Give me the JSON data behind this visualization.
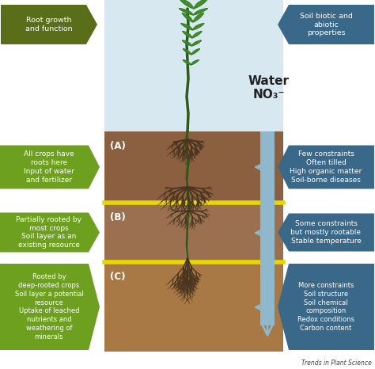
{
  "bg_color": "#ffffff",
  "sky_color": "#d8e8f0",
  "soil_a_color": "#8B6040",
  "soil_b_color": "#9B7050",
  "soil_c_color": "#A87845",
  "yellow_line_color": "#E8D800",
  "arrow_color": "#90b8cc",
  "left_top_color": "#5a6e1a",
  "left_top_text": "Root growth\nand function",
  "left_mid1_color": "#6ea020",
  "left_mid1_text": "All crops have\nroots here\nInput of water\nand fertilizer",
  "left_mid2_color": "#6ea020",
  "left_mid2_text": "Partially rooted by\nmost crops\nSoil layer as an\nexisting resource",
  "left_bot_color": "#6ea020",
  "left_bot_text": "Rooted by\ndeep-rooted crops\nSoil layer a potential\nresource\nUptake of leached\nnutrients and\nweathering of\nminerals",
  "right_top_color": "#3a6888",
  "right_top_text": "Soil biotic and\nabiotic\nproperties",
  "right_mid1_color": "#3a6888",
  "right_mid1_text": "Few constraints\nOften tilled\nHigh organic matter\nSoil-borne diseases",
  "right_mid2_color": "#3a6888",
  "right_mid2_text": "Some constraints\nbut mostly rootable\nStable temperature",
  "right_bot_color": "#3a6888",
  "right_bot_text": "More constraints\nSoil structure\nSoil chemical\ncomposition\nRedox conditions\nCarbon content",
  "label_a": "(A)",
  "label_b": "(B)",
  "label_c": "(C)",
  "water_label": "Water\nNO₃⁻",
  "footer_text": "Trends in Plant Science",
  "stem_color": "#2d5a1a",
  "leaf_color": "#3a8a28",
  "root_color": "#4a3520",
  "taproot_color": "#2a5a18"
}
